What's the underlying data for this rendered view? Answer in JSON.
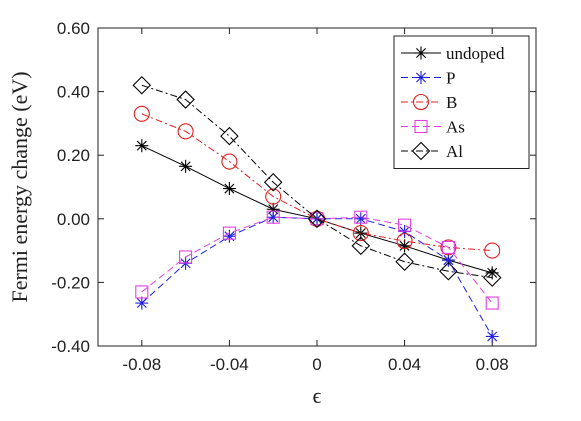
{
  "chart_data": {
    "type": "line",
    "xlabel": "ϵ",
    "ylabel": "Fermi energy change (eV)",
    "xlim": [
      -0.1,
      0.1
    ],
    "ylim": [
      -0.4,
      0.6
    ],
    "x_ticks": [
      -0.08,
      -0.04,
      0,
      0.04,
      0.08
    ],
    "x_tick_labels": [
      "-0.08",
      "-0.04",
      "0",
      "0.04",
      "0.08"
    ],
    "y_ticks": [
      0.6,
      0.4,
      0.2,
      0.0,
      -0.2,
      -0.4
    ],
    "y_tick_labels": [
      "0.60",
      "0.40",
      "0.20",
      "0.00",
      "-0.20",
      "-0.40"
    ],
    "grid": false,
    "legend_position": "top-right",
    "x": [
      -0.08,
      -0.06,
      -0.04,
      -0.02,
      0,
      0.02,
      0.04,
      0.06,
      0.08
    ],
    "series": [
      {
        "name": "undoped",
        "color": "#000000",
        "dash": "solid",
        "marker": "asterisk",
        "values": [
          0.23,
          0.165,
          0.095,
          0.03,
          0.0,
          -0.045,
          -0.085,
          -0.13,
          -0.17
        ]
      },
      {
        "name": "P",
        "color": "#1f1fe0",
        "dash": "dashed",
        "marker": "asterisk",
        "values": [
          -0.265,
          -0.14,
          -0.055,
          0.005,
          0.0,
          0.0,
          -0.04,
          -0.13,
          -0.37
        ]
      },
      {
        "name": "B",
        "color": "#e02020",
        "dash": "dashdot",
        "marker": "circle",
        "values": [
          0.33,
          0.275,
          0.18,
          0.07,
          0.0,
          -0.045,
          -0.07,
          -0.09,
          -0.1
        ]
      },
      {
        "name": "As",
        "color": "#e040e0",
        "dash": "dashed",
        "marker": "square",
        "values": [
          -0.23,
          -0.12,
          -0.045,
          0.005,
          0.0,
          0.005,
          -0.02,
          -0.09,
          -0.265
        ]
      },
      {
        "name": "Al",
        "color": "#000000",
        "dash": "dashdot",
        "marker": "diamond",
        "values": [
          0.42,
          0.375,
          0.26,
          0.115,
          0.0,
          -0.085,
          -0.135,
          -0.165,
          -0.185
        ]
      }
    ]
  }
}
